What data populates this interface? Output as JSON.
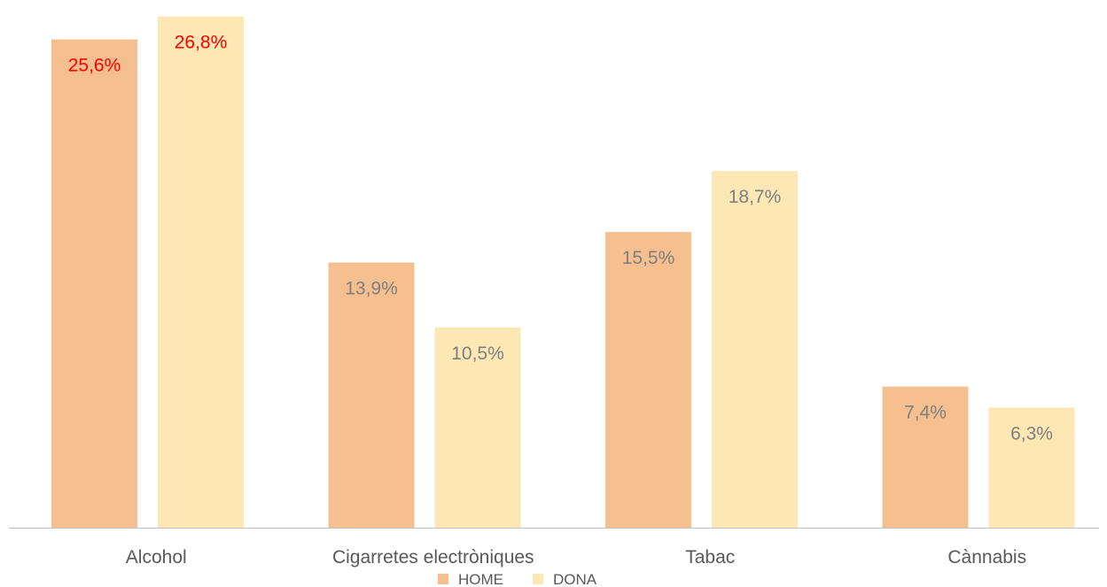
{
  "chart_data": {
    "type": "bar",
    "categories": [
      "Alcohol",
      "Cigarretes electròniques",
      "Tabac",
      "Cànnabis"
    ],
    "series": [
      {
        "name": "HOME",
        "color": "#F5BF8F",
        "values": [
          25.6,
          13.9,
          15.5,
          7.4
        ],
        "labels": [
          "25,6%",
          "13,9%",
          "15,5%",
          "7,4%"
        ]
      },
      {
        "name": "DONA",
        "color": "#FCE7B5",
        "values": [
          26.8,
          10.5,
          18.7,
          6.3
        ],
        "labels": [
          "26,8%",
          "10,5%",
          "18,7%",
          "6,3%"
        ]
      }
    ],
    "label_colors": {
      "default": "#7F7F7F",
      "highlight": "#FF0000",
      "highlight_category": "Alcohol"
    },
    "axis_color": "#BFBFBF",
    "ylim": [
      0,
      27.2
    ],
    "grid": false,
    "legend_position": "bottom"
  }
}
